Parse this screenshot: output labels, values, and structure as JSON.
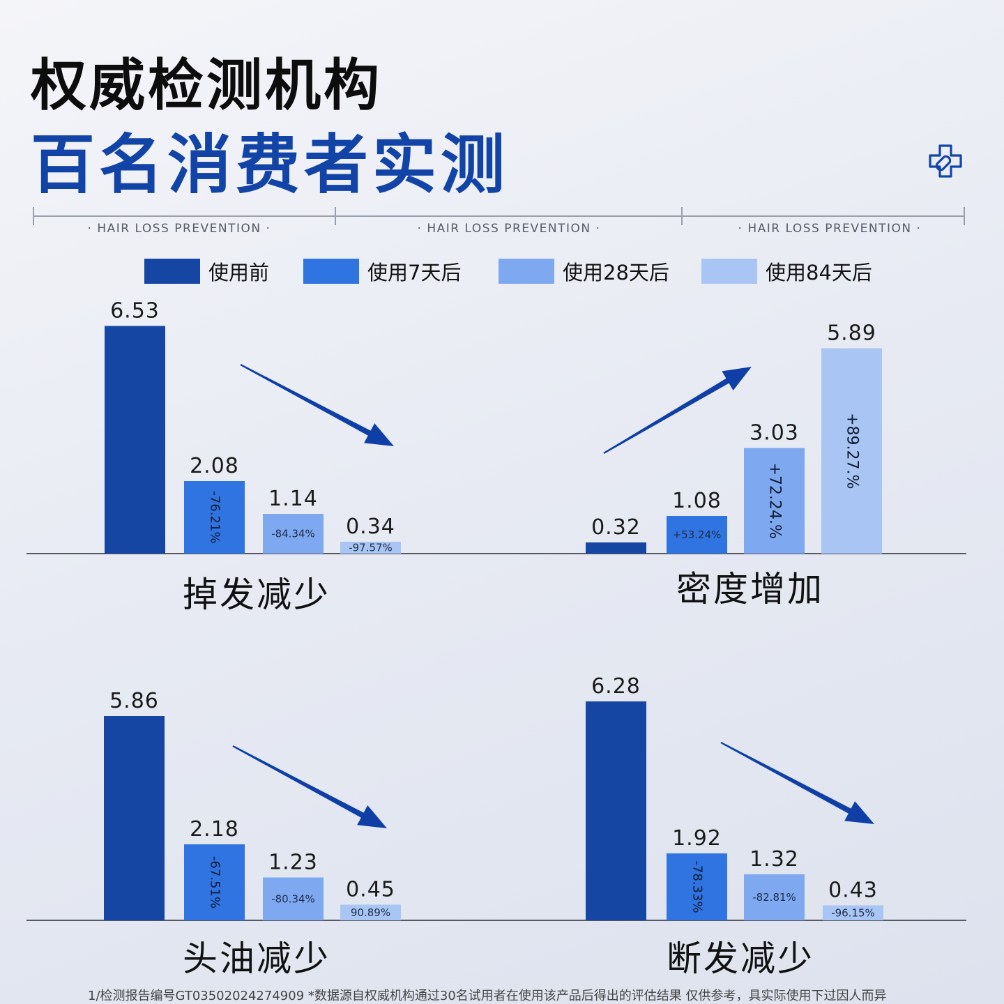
{
  "header": {
    "title_line1": "权威检测机构",
    "title_line2": "百名消费者实测",
    "sublabels": [
      "· HAIR LOSS PREVENTION ·",
      "· HAIR LOSS PREVENTION ·",
      "· HAIR LOSS PREVENTION ·"
    ]
  },
  "legend": [
    {
      "label": "使用前",
      "color": "#1546a4"
    },
    {
      "label": "使用7天后",
      "color": "#2f74e0"
    },
    {
      "label": "使用28天后",
      "color": "#7ea9f0"
    },
    {
      "label": "使用84天后",
      "color": "#a9c5f3"
    }
  ],
  "colors": {
    "accent": "#1244a8",
    "arrow": "#0f3fa6",
    "axis": "#555a63"
  },
  "footnote": "1/检测报告编号GT03502024274909 *数据源自权威机构通过30名试用者在使用该产品后得出的评估结果 仅供参考，具实际使用下过因人而异",
  "chart_data": [
    {
      "type": "bar",
      "title": "掉发减少",
      "categories": [
        "使用前",
        "使用7天后",
        "使用28天后",
        "使用84天后"
      ],
      "values": [
        6.53,
        2.08,
        1.14,
        0.34
      ],
      "value_labels": [
        "6.53",
        "2.08",
        "1.14",
        "0.34"
      ],
      "change_labels": [
        "",
        "-76.21%",
        "-84.34%",
        "-97.57%"
      ],
      "trend": "down"
    },
    {
      "type": "bar",
      "title": "密度增加",
      "categories": [
        "使用前",
        "使用7天后",
        "使用28天后",
        "使用84天后"
      ],
      "values": [
        0.32,
        1.08,
        3.03,
        5.89
      ],
      "value_labels": [
        "0.32",
        "1.08",
        "3.03",
        "5.89"
      ],
      "change_labels": [
        "",
        "+53.24%",
        "+72.24.%",
        "+89.27.%"
      ],
      "trend": "up"
    },
    {
      "type": "bar",
      "title": "头油减少",
      "categories": [
        "使用前",
        "使用7天后",
        "使用28天后",
        "使用84天后"
      ],
      "values": [
        5.86,
        2.18,
        1.23,
        0.45
      ],
      "value_labels": [
        "5.86",
        "2.18",
        "1.23",
        "0.45"
      ],
      "change_labels": [
        "",
        "-67.51%",
        "-80.34%",
        "90.89%"
      ],
      "trend": "down"
    },
    {
      "type": "bar",
      "title": "断发减少",
      "categories": [
        "使用前",
        "使用7天后",
        "使用28天后",
        "使用84天后"
      ],
      "values": [
        6.28,
        1.92,
        1.32,
        0.43
      ],
      "value_labels": [
        "6.28",
        "1.92",
        "1.32",
        "0.43"
      ],
      "change_labels": [
        "",
        "-78.33%",
        "-82.81%",
        "-96.15%"
      ],
      "trend": "down"
    }
  ]
}
